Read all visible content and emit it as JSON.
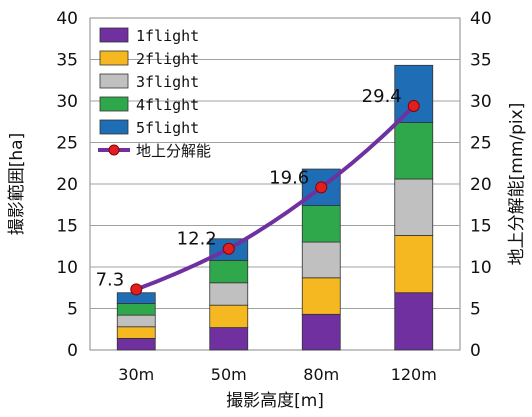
{
  "chart_data": {
    "type": "bar",
    "stacked": true,
    "categories": [
      "30m",
      "50m",
      "80m",
      "120m"
    ],
    "xlabel": "撮影高度[m]",
    "ylabel": "撮影範囲[ha]",
    "y2label": "地上分解能[mm/pix]",
    "ylim": [
      0,
      40
    ],
    "y2lim": [
      0,
      40
    ],
    "yticks": [
      0,
      5,
      10,
      15,
      20,
      25,
      30,
      35,
      40
    ],
    "grid": true,
    "legend_position": "top-left",
    "series": [
      {
        "name": "1flight",
        "color": "#7030a0",
        "values": [
          1.4,
          2.7,
          4.3,
          6.9
        ]
      },
      {
        "name": "2flight",
        "color": "#f5b820",
        "values": [
          1.4,
          2.7,
          4.4,
          6.9
        ]
      },
      {
        "name": "3flight",
        "color": "#c0c0c0",
        "values": [
          1.4,
          2.7,
          4.3,
          6.8
        ]
      },
      {
        "name": "4flight",
        "color": "#2ea84a",
        "values": [
          1.4,
          2.7,
          4.4,
          6.8
        ]
      },
      {
        "name": "5flight",
        "color": "#1f6db5",
        "values": [
          1.3,
          2.6,
          4.4,
          6.9
        ]
      }
    ],
    "line_series": {
      "name": "地上分解能",
      "color": "#7030a0",
      "marker_color": "#e02020",
      "axis": "y2",
      "values": [
        7.3,
        12.2,
        19.6,
        29.4
      ],
      "labels": [
        "7.3",
        "12.2",
        "19.6",
        "29.4"
      ]
    }
  }
}
